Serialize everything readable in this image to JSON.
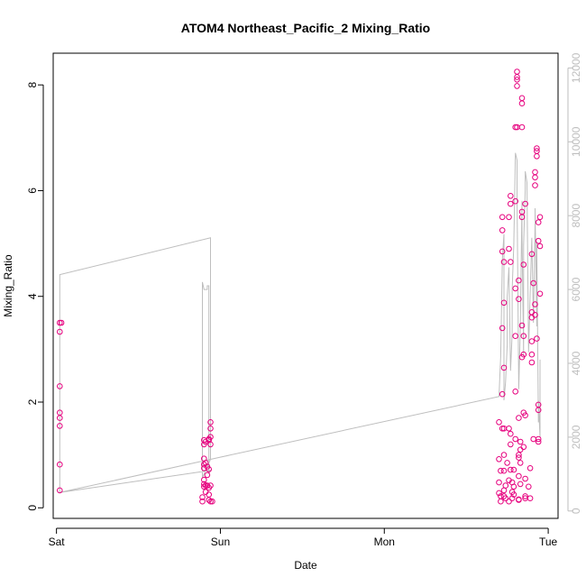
{
  "chart_data": {
    "type": "scatter",
    "title": "ATOM4 Northeast_Pacific_2 Mixing_Ratio",
    "xlabel": "Date",
    "ylabel": "Mixing_Ratio",
    "x_ticks": [
      "Sat",
      "Sun",
      "Mon",
      "Tue"
    ],
    "x_range_days": [
      -0.02,
      3.06
    ],
    "ylim": [
      -0.2,
      8.6
    ],
    "y_ticks": [
      "0",
      "2",
      "4",
      "6",
      "8"
    ],
    "y2lim": [
      -200,
      12400
    ],
    "y2_ticks": [
      "0",
      "2000",
      "4000",
      "6000",
      "8000",
      "10000",
      "12000"
    ],
    "grid": false,
    "legend": "none",
    "colors": {
      "points": "#e6007e",
      "line": "#bebebe",
      "axes": "#000000"
    },
    "series": [
      {
        "type": "scatter",
        "axis": "left",
        "points": [
          [
            0.02,
            0.33
          ],
          [
            0.02,
            0.82
          ],
          [
            0.02,
            1.55
          ],
          [
            0.02,
            1.7
          ],
          [
            0.02,
            1.8
          ],
          [
            0.02,
            2.3
          ],
          [
            0.02,
            3.33
          ],
          [
            0.02,
            3.5
          ],
          [
            0.03,
            3.5
          ],
          [
            0.89,
            0.12
          ],
          [
            0.89,
            0.2
          ],
          [
            0.9,
            0.4
          ],
          [
            0.9,
            0.45
          ],
          [
            0.9,
            0.53
          ],
          [
            0.9,
            0.75
          ],
          [
            0.9,
            0.82
          ],
          [
            0.9,
            0.93
          ],
          [
            0.9,
            1.2
          ],
          [
            0.9,
            1.28
          ],
          [
            0.91,
            0.3
          ],
          [
            0.91,
            0.42
          ],
          [
            0.91,
            0.85
          ],
          [
            0.91,
            1.25
          ],
          [
            0.92,
            0.42
          ],
          [
            0.92,
            0.62
          ],
          [
            0.92,
            0.78
          ],
          [
            0.93,
            0.15
          ],
          [
            0.93,
            0.25
          ],
          [
            0.93,
            0.38
          ],
          [
            0.93,
            0.73
          ],
          [
            0.93,
            1.28
          ],
          [
            0.93,
            1.3
          ],
          [
            0.94,
            0.12
          ],
          [
            0.94,
            0.42
          ],
          [
            0.94,
            1.2
          ],
          [
            0.94,
            1.34
          ],
          [
            0.94,
            1.5
          ],
          [
            0.94,
            1.62
          ],
          [
            0.95,
            0.12
          ],
          [
            2.7,
            1.62
          ],
          [
            2.7,
            0.48
          ],
          [
            2.7,
            0.28
          ],
          [
            2.7,
            0.92
          ],
          [
            2.71,
            0.12
          ],
          [
            2.71,
            0.7
          ],
          [
            2.71,
            0.22
          ],
          [
            2.72,
            1.5
          ],
          [
            2.72,
            2.15
          ],
          [
            2.72,
            3.4
          ],
          [
            2.72,
            4.85
          ],
          [
            2.72,
            5.5
          ],
          [
            2.72,
            5.25
          ],
          [
            2.73,
            4.65
          ],
          [
            2.73,
            3.88
          ],
          [
            2.73,
            2.65
          ],
          [
            2.73,
            1.5
          ],
          [
            2.73,
            1.0
          ],
          [
            2.73,
            0.7
          ],
          [
            2.73,
            0.33
          ],
          [
            2.73,
            0.22
          ],
          [
            2.74,
            0.42
          ],
          [
            2.74,
            0.18
          ],
          [
            2.75,
            0.85
          ],
          [
            2.76,
            0.12
          ],
          [
            2.76,
            0.52
          ],
          [
            2.76,
            1.5
          ],
          [
            2.76,
            4.9
          ],
          [
            2.76,
            5.5
          ],
          [
            2.77,
            5.9
          ],
          [
            2.77,
            5.75
          ],
          [
            2.77,
            4.65
          ],
          [
            2.77,
            1.4
          ],
          [
            2.77,
            1.2
          ],
          [
            2.77,
            0.72
          ],
          [
            2.78,
            0.48
          ],
          [
            2.78,
            0.3
          ],
          [
            2.78,
            0.18
          ],
          [
            2.79,
            0.25
          ],
          [
            2.79,
            0.4
          ],
          [
            2.79,
            0.72
          ],
          [
            2.8,
            1.3
          ],
          [
            2.8,
            2.2
          ],
          [
            2.8,
            3.25
          ],
          [
            2.8,
            4.15
          ],
          [
            2.8,
            5.8
          ],
          [
            2.8,
            7.2
          ],
          [
            2.81,
            8.25
          ],
          [
            2.81,
            8.15
          ],
          [
            2.81,
            8.1
          ],
          [
            2.81,
            7.98
          ],
          [
            2.81,
            7.2
          ],
          [
            2.82,
            4.3
          ],
          [
            2.82,
            3.95
          ],
          [
            2.82,
            1.7
          ],
          [
            2.82,
            1.0
          ],
          [
            2.82,
            0.95
          ],
          [
            2.82,
            0.6
          ],
          [
            2.82,
            0.16
          ],
          [
            2.82,
            0.15
          ],
          [
            2.83,
            0.45
          ],
          [
            2.83,
            0.85
          ],
          [
            2.83,
            1.1
          ],
          [
            2.83,
            1.25
          ],
          [
            2.84,
            2.85
          ],
          [
            2.84,
            3.45
          ],
          [
            2.84,
            5.5
          ],
          [
            2.84,
            5.6
          ],
          [
            2.84,
            7.2
          ],
          [
            2.84,
            7.65
          ],
          [
            2.84,
            7.75
          ],
          [
            2.85,
            4.6
          ],
          [
            2.85,
            3.25
          ],
          [
            2.85,
            2.9
          ],
          [
            2.85,
            1.8
          ],
          [
            2.85,
            1.15
          ],
          [
            2.86,
            0.55
          ],
          [
            2.86,
            0.22
          ],
          [
            2.86,
            0.18
          ],
          [
            2.86,
            1.75
          ],
          [
            2.86,
            5.75
          ],
          [
            2.88,
            0.4
          ],
          [
            2.89,
            0.75
          ],
          [
            2.89,
            0.18
          ],
          [
            2.9,
            2.75
          ],
          [
            2.9,
            2.9
          ],
          [
            2.9,
            3.15
          ],
          [
            2.9,
            3.6
          ],
          [
            2.9,
            3.7
          ],
          [
            2.9,
            4.8
          ],
          [
            2.91,
            1.3
          ],
          [
            2.91,
            4.25
          ],
          [
            2.92,
            3.65
          ],
          [
            2.92,
            3.85
          ],
          [
            2.92,
            6.1
          ],
          [
            2.92,
            6.25
          ],
          [
            2.92,
            6.35
          ],
          [
            2.93,
            6.65
          ],
          [
            2.93,
            6.75
          ],
          [
            2.93,
            6.8
          ],
          [
            2.93,
            3.2
          ],
          [
            2.94,
            1.25
          ],
          [
            2.94,
            1.3
          ],
          [
            2.94,
            1.85
          ],
          [
            2.94,
            1.95
          ],
          [
            2.94,
            5.05
          ],
          [
            2.94,
            5.4
          ],
          [
            2.95,
            4.95
          ],
          [
            2.95,
            5.5
          ],
          [
            2.95,
            4.05
          ]
        ]
      },
      {
        "type": "line",
        "axis": "right",
        "points": [
          [
            0.02,
            500
          ],
          [
            0.02,
            6400
          ],
          [
            0.94,
            7400
          ],
          [
            0.94,
            1400
          ],
          [
            0.89,
            900
          ],
          [
            0.89,
            6200
          ],
          [
            0.9,
            6000
          ],
          [
            0.91,
            6000
          ],
          [
            0.92,
            6000
          ],
          [
            0.92,
            6100
          ],
          [
            0.93,
            6100
          ],
          [
            0.93,
            1000
          ],
          [
            0.94,
            1100
          ],
          [
            0.02,
            500
          ],
          [
            0.94,
            1400
          ],
          [
            2.7,
            3100
          ],
          [
            2.71,
            4200
          ],
          [
            2.72,
            6800
          ],
          [
            2.73,
            7500
          ],
          [
            2.73,
            3000
          ],
          [
            2.74,
            3500
          ],
          [
            2.75,
            4500
          ],
          [
            2.75,
            5800
          ],
          [
            2.76,
            6600
          ],
          [
            2.77,
            3800
          ],
          [
            2.78,
            4800
          ],
          [
            2.78,
            6000
          ],
          [
            2.79,
            7200
          ],
          [
            2.8,
            9700
          ],
          [
            2.81,
            9500
          ],
          [
            2.81,
            8600
          ],
          [
            2.82,
            3300
          ],
          [
            2.83,
            5000
          ],
          [
            2.84,
            8400
          ],
          [
            2.84,
            7500
          ],
          [
            2.85,
            4200
          ],
          [
            2.85,
            7200
          ],
          [
            2.86,
            8700
          ],
          [
            2.86,
            9200
          ],
          [
            2.87,
            8900
          ],
          [
            2.88,
            4300
          ],
          [
            2.89,
            5900
          ],
          [
            2.9,
            7400
          ],
          [
            2.91,
            5100
          ],
          [
            2.92,
            7800
          ],
          [
            2.92,
            8200
          ],
          [
            2.93,
            5000
          ],
          [
            2.93,
            7300
          ],
          [
            2.94,
            2400
          ],
          [
            2.94,
            3000
          ],
          [
            2.95,
            2000
          ],
          [
            2.95,
            4100
          ]
        ]
      }
    ]
  }
}
